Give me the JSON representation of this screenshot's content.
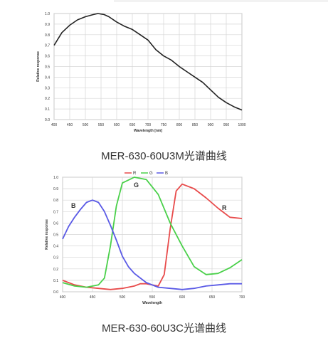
{
  "chart_data": [
    {
      "type": "line",
      "ylabel": "Relative response",
      "xlabel": "Wavelength [nm]",
      "xlim": [
        400,
        1000
      ],
      "ylim": [
        0.0,
        1.0
      ],
      "xticks": [
        400,
        450,
        500,
        550,
        600,
        650,
        700,
        750,
        800,
        850,
        900,
        950,
        1000
      ],
      "yticks": [
        0.0,
        0.1,
        0.2,
        0.3,
        0.4,
        0.5,
        0.6,
        0.7,
        0.8,
        0.9,
        1.0
      ],
      "grid": true,
      "series": [
        {
          "color": "#222222",
          "x": [
            400,
            425,
            450,
            475,
            500,
            525,
            540,
            560,
            575,
            600,
            625,
            650,
            675,
            700,
            725,
            750,
            775,
            800,
            825,
            850,
            875,
            900,
            925,
            950,
            975,
            1000
          ],
          "y": [
            0.7,
            0.82,
            0.89,
            0.94,
            0.97,
            0.99,
            1.0,
            0.99,
            0.97,
            0.92,
            0.88,
            0.85,
            0.8,
            0.75,
            0.66,
            0.6,
            0.56,
            0.5,
            0.45,
            0.4,
            0.35,
            0.28,
            0.21,
            0.16,
            0.12,
            0.09
          ]
        }
      ]
    },
    {
      "type": "line",
      "ylabel": "Relative response",
      "xlabel": "Wavelength",
      "xlim": [
        400,
        700
      ],
      "ylim": [
        0.0,
        1.0
      ],
      "xticks": [
        400,
        450,
        500,
        550,
        600,
        650,
        700
      ],
      "yticks": [
        0.0,
        0.1,
        0.2,
        0.3,
        0.4,
        0.5,
        0.6,
        0.7,
        0.8,
        0.9,
        1.0
      ],
      "grid": true,
      "legend": "top",
      "series": [
        {
          "name": "R",
          "color": "#e84b4b",
          "x": [
            400,
            420,
            440,
            460,
            480,
            500,
            520,
            530,
            540,
            560,
            570,
            580,
            590,
            600,
            620,
            640,
            660,
            680,
            700
          ],
          "y": [
            0.1,
            0.06,
            0.04,
            0.03,
            0.02,
            0.03,
            0.05,
            0.07,
            0.07,
            0.05,
            0.15,
            0.55,
            0.88,
            0.94,
            0.9,
            0.82,
            0.73,
            0.65,
            0.64
          ]
        },
        {
          "name": "G",
          "color": "#4ad04a",
          "x": [
            400,
            420,
            440,
            460,
            470,
            480,
            490,
            500,
            520,
            540,
            560,
            580,
            600,
            620,
            640,
            660,
            680,
            700
          ],
          "y": [
            0.08,
            0.05,
            0.04,
            0.06,
            0.12,
            0.4,
            0.75,
            0.95,
            1.0,
            0.98,
            0.85,
            0.6,
            0.4,
            0.22,
            0.15,
            0.16,
            0.21,
            0.28
          ]
        },
        {
          "name": "B",
          "color": "#5a5ae6",
          "x": [
            400,
            410,
            420,
            430,
            440,
            450,
            460,
            470,
            480,
            490,
            500,
            510,
            520,
            540,
            560,
            580,
            600,
            620,
            640,
            660,
            680,
            700
          ],
          "y": [
            0.46,
            0.57,
            0.65,
            0.72,
            0.78,
            0.8,
            0.78,
            0.7,
            0.58,
            0.45,
            0.31,
            0.22,
            0.16,
            0.08,
            0.04,
            0.03,
            0.02,
            0.03,
            0.05,
            0.06,
            0.07,
            0.07
          ]
        }
      ],
      "annotations": [
        "B",
        "G",
        "R"
      ]
    }
  ],
  "captions": [
    "MER-630-60U3M光谱曲线",
    "MER-630-60U3C光谱曲线"
  ]
}
